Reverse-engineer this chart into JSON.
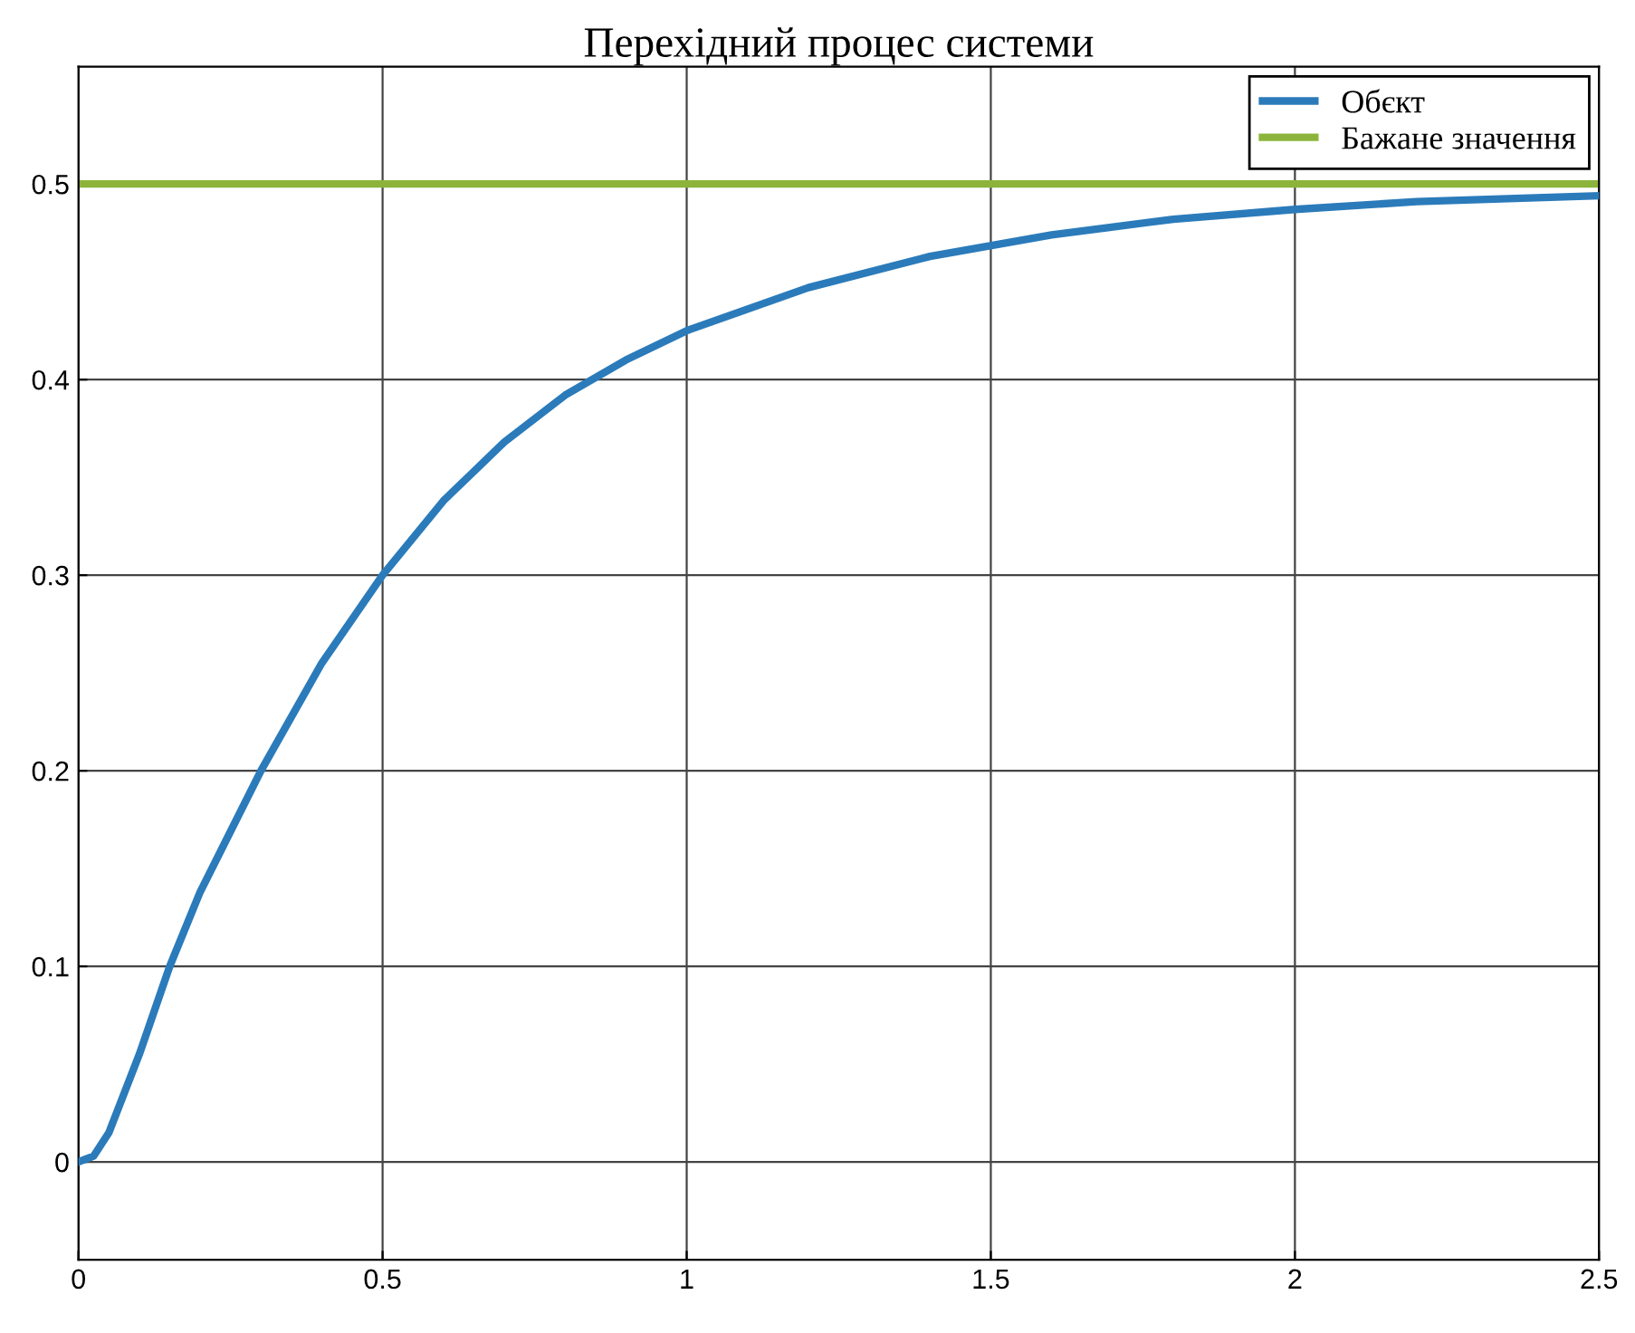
{
  "chart_data": {
    "type": "line",
    "title": "Перехідний процес системи",
    "xlim": [
      0,
      2.5
    ],
    "xticks": [
      0,
      0.5,
      1,
      1.5,
      2,
      2.5
    ],
    "ylim": [
      -0.05,
      0.56
    ],
    "yticks": [
      0,
      0.1,
      0.2,
      0.3,
      0.4,
      0.5
    ],
    "grid": true,
    "legend": "top right",
    "series": [
      {
        "name": "Обєкт",
        "color": "#2b7bba",
        "x": [
          0,
          0.025,
          0.05,
          0.1,
          0.15,
          0.2,
          0.3,
          0.4,
          0.5,
          0.6,
          0.7,
          0.8,
          0.9,
          1.0,
          1.2,
          1.4,
          1.6,
          1.8,
          2.0,
          2.2,
          2.5
        ],
        "values": [
          0,
          0.003,
          0.015,
          0.055,
          0.1,
          0.138,
          0.2,
          0.255,
          0.3,
          0.338,
          0.368,
          0.392,
          0.41,
          0.425,
          0.447,
          0.463,
          0.474,
          0.482,
          0.487,
          0.491,
          0.494
        ]
      },
      {
        "name": "Бажане значення",
        "type": "step",
        "color": "#8db43a",
        "x": [
          0,
          2.5
        ],
        "values": [
          0.5,
          0.5
        ]
      }
    ]
  }
}
